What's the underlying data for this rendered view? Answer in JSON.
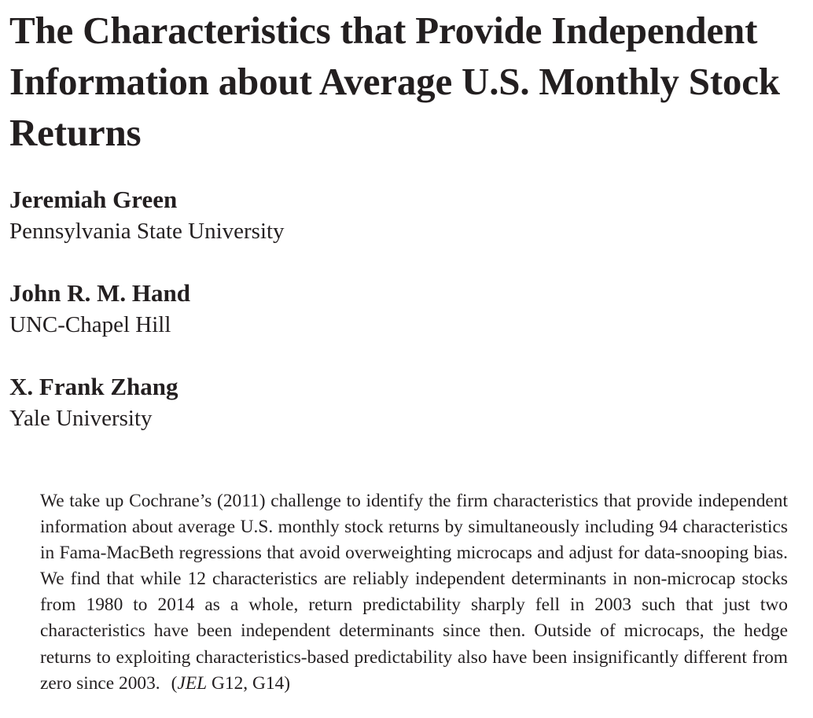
{
  "title": "The Characteristics that Provide Independent Information about Average U.S. Monthly Stock Returns",
  "authors": [
    {
      "name": "Jeremiah Green",
      "affiliation": "Pennsylvania State University"
    },
    {
      "name": "John R. M. Hand",
      "affiliation": "UNC-Chapel Hill"
    },
    {
      "name": "X. Frank Zhang",
      "affiliation": "Yale University"
    }
  ],
  "abstract": {
    "text": "We take up Cochrane’s (2011) challenge to identify the firm characteristics that provide independent information about average U.S. monthly stock returns by simultaneously including 94 characteristics in Fama-MacBeth regressions that avoid overweighting microcaps and adjust for data-snooping bias. We find that while 12 characteristics are reliably independent determinants in non-microcap stocks from 1980 to 2014 as a whole, return predictability sharply fell in 2003 such that just two characteristics have been independent determinants since then. Outside of microcaps, the hedge returns to exploiting characteristics-based predictability also have been insignificantly different from zero since 2003.",
    "jel_open": "(",
    "jel_label": "JEL",
    "jel_codes": "G12, G14",
    "jel_close": ")"
  }
}
